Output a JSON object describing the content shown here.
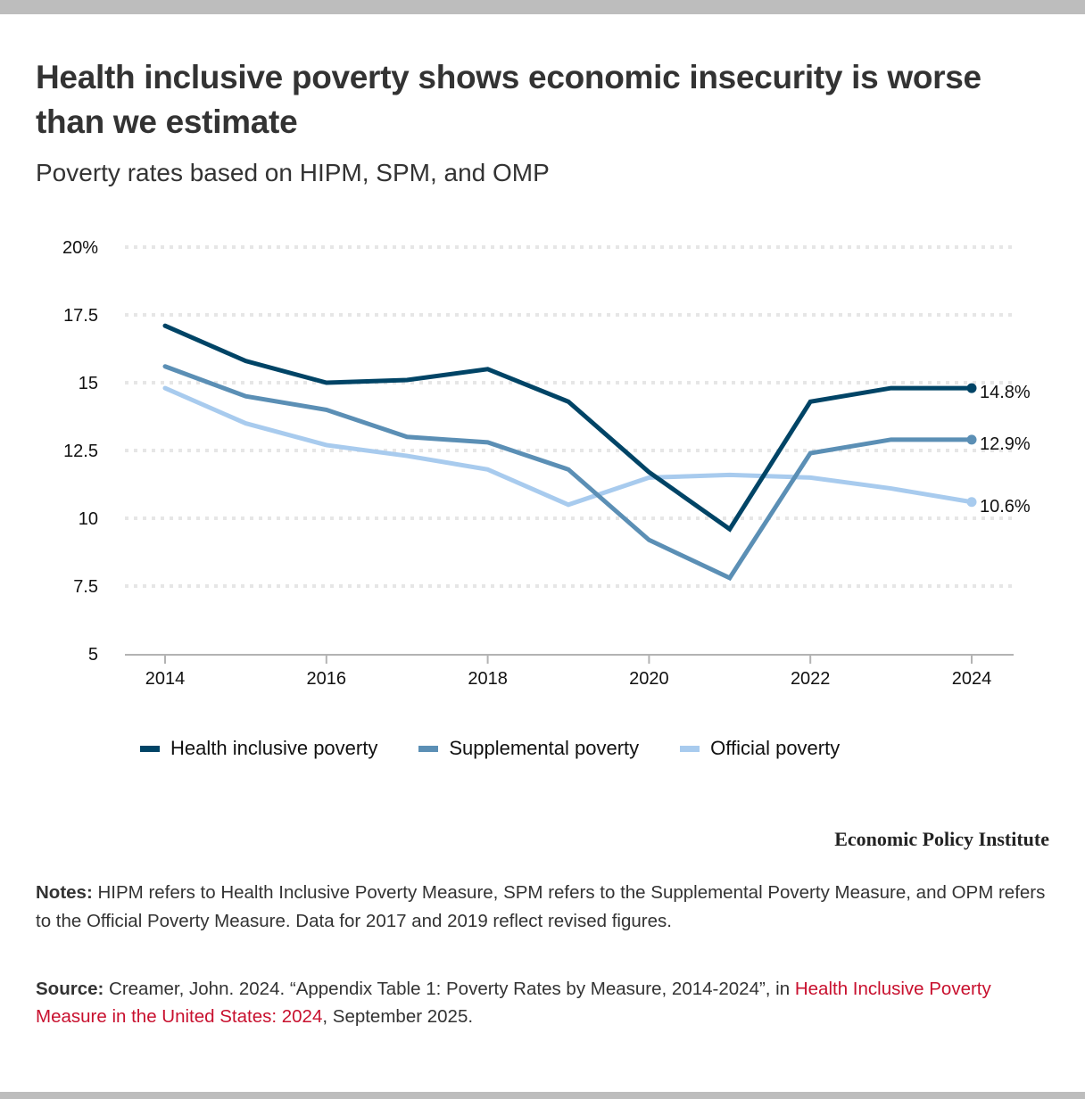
{
  "header": {
    "title": "Health inclusive poverty shows economic insecurity is worse than we estimate",
    "subtitle": "Poverty rates based on HIPM, SPM, and OMP"
  },
  "brand": "Economic Policy Institute",
  "notes": {
    "label": "Notes:",
    "text": " HIPM refers to Health Inclusive Poverty Measure, SPM refers to the Supplemental Poverty Measure, and OPM refers to the Official Poverty Measure. Data for 2017 and 2019 reflect revised figures."
  },
  "source": {
    "label": "Source:",
    "text_before": " Creamer, John. 2024. “Appendix Table 1: Poverty Rates by Measure, 2014-2024”, in ",
    "link_text": "Health Inclusive Poverty Measure in the United States: 2024",
    "text_after": ", September 2025."
  },
  "colors": {
    "hipm": "#004466",
    "spm": "#5b8fb5",
    "opm": "#a8cbee",
    "grid": "#e6e6e6",
    "axis": "#b3b3b3",
    "link": "#c8102e"
  },
  "chart_data": {
    "type": "line",
    "title": "Health inclusive poverty shows economic insecurity is worse than we estimate",
    "subtitle": "Poverty rates based on HIPM, SPM, and OMP",
    "xlabel": "",
    "ylabel": "",
    "x": [
      2014,
      2015,
      2016,
      2017,
      2018,
      2019,
      2020,
      2021,
      2022,
      2023,
      2024
    ],
    "xlim": [
      2013.5,
      2024.5
    ],
    "x_ticks": [
      2014,
      2016,
      2018,
      2020,
      2022,
      2024
    ],
    "x_tick_labels": [
      "2014",
      "2016",
      "2018",
      "2020",
      "2022",
      "2024"
    ],
    "ylim": [
      5,
      20
    ],
    "y_ticks": [
      5,
      7.5,
      10,
      12.5,
      15,
      17.5,
      20
    ],
    "y_tick_labels": [
      "5",
      "7.5",
      "10",
      "12.5",
      "15",
      "17.5",
      "20%"
    ],
    "grid": true,
    "legend_position": "bottom",
    "series": [
      {
        "name": "Health inclusive poverty",
        "key": "hipm",
        "values": [
          17.1,
          15.8,
          15.0,
          15.1,
          15.5,
          14.3,
          11.7,
          9.6,
          14.3,
          14.8,
          14.8
        ],
        "end_label": "14.8%"
      },
      {
        "name": "Supplemental poverty",
        "key": "spm",
        "values": [
          15.6,
          14.5,
          14.0,
          13.0,
          12.8,
          11.8,
          9.2,
          7.8,
          12.4,
          12.9,
          12.9
        ],
        "end_label": "12.9%"
      },
      {
        "name": "Official poverty",
        "key": "opm",
        "values": [
          14.8,
          13.5,
          12.7,
          12.3,
          11.8,
          10.5,
          11.5,
          11.6,
          11.5,
          11.1,
          10.6
        ],
        "end_label": "10.6%"
      }
    ]
  }
}
